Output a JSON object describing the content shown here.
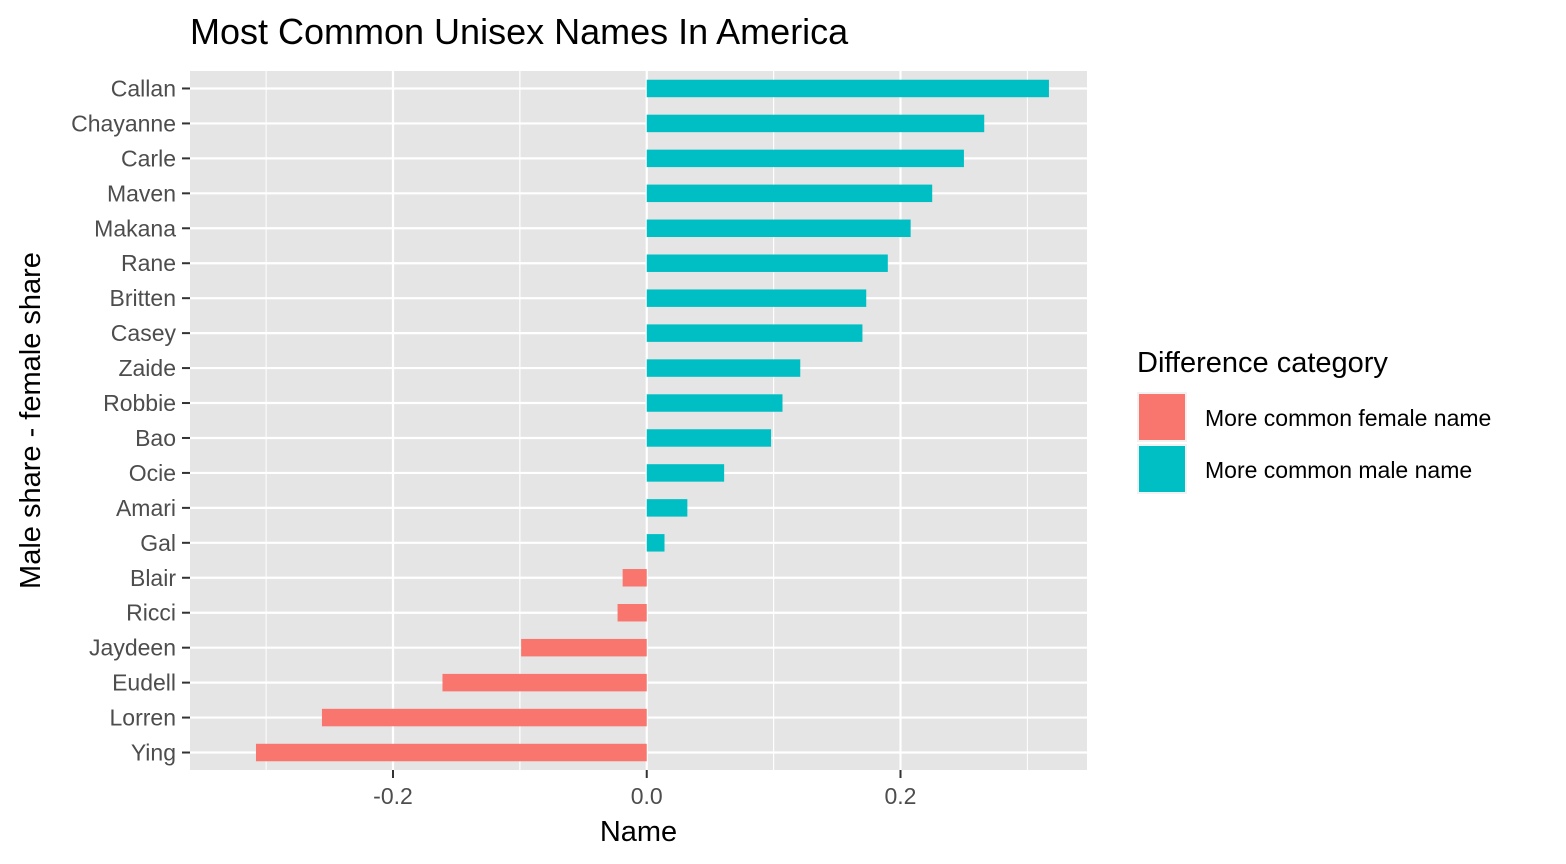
{
  "chart_data": {
    "type": "bar",
    "orientation": "horizontal",
    "title": "Most Common Unisex Names In America",
    "xlabel": "Name",
    "ylabel": "Male share - female share",
    "xlim": [
      -0.36,
      0.347
    ],
    "x_ticks": [
      -0.2,
      0.0,
      0.2
    ],
    "x_tick_labels": [
      "-0.2",
      "0.0",
      "0.2"
    ],
    "grid": true,
    "legend": {
      "title": "Difference category",
      "position": "right",
      "entries": [
        {
          "label": "More common female name",
          "color": "#F8766D"
        },
        {
          "label": "More common male name",
          "color": "#00BFC4"
        }
      ]
    },
    "categories": [
      "Callan",
      "Chayanne",
      "Carle",
      "Maven",
      "Makana",
      "Rane",
      "Britten",
      "Casey",
      "Zaide",
      "Robbie",
      "Bao",
      "Ocie",
      "Amari",
      "Gal",
      "Blair",
      "Ricci",
      "Jaydeen",
      "Eudell",
      "Lorren",
      "Ying"
    ],
    "values": [
      0.317,
      0.266,
      0.25,
      0.225,
      0.208,
      0.19,
      0.173,
      0.17,
      0.121,
      0.107,
      0.098,
      0.061,
      0.032,
      0.014,
      -0.019,
      -0.023,
      -0.099,
      -0.161,
      -0.256,
      -0.308
    ],
    "series_category": [
      "More common male name",
      "More common male name",
      "More common male name",
      "More common male name",
      "More common male name",
      "More common male name",
      "More common male name",
      "More common male name",
      "More common male name",
      "More common male name",
      "More common male name",
      "More common male name",
      "More common male name",
      "More common male name",
      "More common female name",
      "More common female name",
      "More common female name",
      "More common female name",
      "More common female name",
      "More common female name"
    ],
    "colors": {
      "panel_background": "#E5E5E5",
      "grid": "#FFFFFF",
      "female": "#F8766D",
      "male": "#00BFC4"
    }
  }
}
